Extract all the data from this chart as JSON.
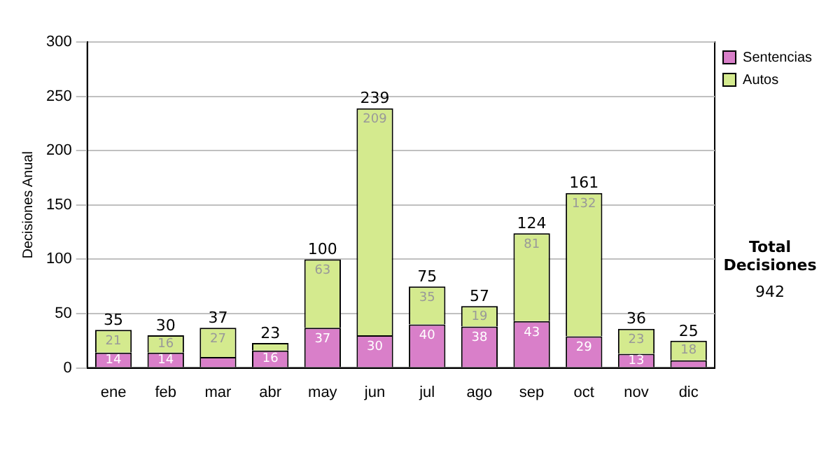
{
  "chart_data": {
    "type": "bar",
    "stacked": true,
    "ylabel": "Decisiones Anual",
    "categories": [
      "ene",
      "feb",
      "mar",
      "abr",
      "may",
      "jun",
      "jul",
      "ago",
      "sep",
      "oct",
      "nov",
      "dic"
    ],
    "series": [
      {
        "name": "Sentencias",
        "color": "#d97fc9",
        "values": [
          14,
          14,
          10,
          16,
          37,
          30,
          40,
          38,
          43,
          29,
          13,
          7
        ],
        "value_labels": [
          "14",
          "14",
          null,
          "16",
          "37",
          "30",
          "40",
          "38",
          "43",
          "29",
          "13",
          null
        ]
      },
      {
        "name": "Autos",
        "color": "#d4ea8e",
        "values": [
          21,
          16,
          27,
          7,
          63,
          209,
          35,
          19,
          81,
          132,
          23,
          18
        ],
        "value_labels": [
          "21",
          "16",
          "27",
          null,
          "63",
          "209",
          "35",
          "19",
          "81",
          "132",
          "23",
          "18"
        ]
      }
    ],
    "totals": [
      "35",
      "30",
      "37",
      "23",
      "100",
      "239",
      "75",
      "57",
      "124",
      "161",
      "36",
      "25"
    ],
    "ylim": [
      0,
      300
    ],
    "yticks": [
      0,
      50,
      100,
      150,
      200,
      250,
      300
    ],
    "grid": "y",
    "legend": "right",
    "annotations": [
      "Total Decisiones",
      "942"
    ]
  }
}
